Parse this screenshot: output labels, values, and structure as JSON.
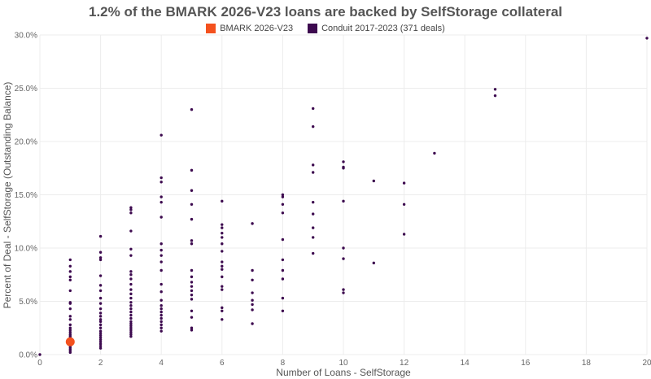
{
  "chart_data": {
    "type": "scatter",
    "title": "1.2% of the BMARK 2026-V23 loans are backed by SelfStorage collateral",
    "xlabel": "Number of Loans - SelfStorage",
    "ylabel": "Percent of Deal - SelfStorage (Outstanding Balance)",
    "xlim": [
      0,
      20
    ],
    "ylim": [
      0,
      30
    ],
    "x_ticks": [
      0,
      2,
      4,
      6,
      8,
      10,
      12,
      14,
      16,
      18,
      20
    ],
    "y_ticks": [
      0,
      5,
      10,
      15,
      20,
      25,
      30
    ],
    "x_tick_labels": [
      "0",
      "2",
      "4",
      "6",
      "8",
      "10",
      "12",
      "14",
      "16",
      "18",
      "20"
    ],
    "y_tick_labels": [
      "0.0%",
      "5.0%",
      "10.0%",
      "15.0%",
      "20.0%",
      "25.0%",
      "30.0%"
    ],
    "grid": true,
    "legend_position": "top-center",
    "series": [
      {
        "name": "BMARK 2026-V23",
        "color": "#f4511e",
        "points": [
          [
            1,
            1.2
          ]
        ]
      },
      {
        "name": "Conduit 2017-2023 (371 deals)",
        "color": "#3d0a4f",
        "points": [
          [
            0,
            0.0
          ],
          [
            1,
            0.2
          ],
          [
            1,
            0.35
          ],
          [
            1,
            0.5
          ],
          [
            1,
            0.65
          ],
          [
            1,
            0.8
          ],
          [
            1,
            0.95
          ],
          [
            1,
            1.1
          ],
          [
            1,
            1.3
          ],
          [
            1,
            1.45
          ],
          [
            1,
            1.6
          ],
          [
            1,
            1.75
          ],
          [
            1,
            1.9
          ],
          [
            1,
            2.1
          ],
          [
            1,
            2.3
          ],
          [
            1,
            2.5
          ],
          [
            1,
            2.8
          ],
          [
            1,
            3.3
          ],
          [
            1,
            3.6
          ],
          [
            1,
            4.3
          ],
          [
            1,
            4.8
          ],
          [
            1,
            4.9
          ],
          [
            1,
            6.0
          ],
          [
            1,
            7.0
          ],
          [
            1,
            7.3
          ],
          [
            1,
            7.8
          ],
          [
            1,
            8.3
          ],
          [
            1,
            8.9
          ],
          [
            2,
            0.6
          ],
          [
            2,
            0.8
          ],
          [
            2,
            1.0
          ],
          [
            2,
            1.2
          ],
          [
            2,
            1.4
          ],
          [
            2,
            1.6
          ],
          [
            2,
            1.8
          ],
          [
            2,
            2.0
          ],
          [
            2,
            2.2
          ],
          [
            2,
            2.5
          ],
          [
            2,
            2.8
          ],
          [
            2,
            3.1
          ],
          [
            2,
            3.3
          ],
          [
            2,
            3.6
          ],
          [
            2,
            3.9
          ],
          [
            2,
            4.3
          ],
          [
            2,
            4.8
          ],
          [
            2,
            5.3
          ],
          [
            2,
            6.0
          ],
          [
            2,
            6.5
          ],
          [
            2,
            7.4
          ],
          [
            2,
            8.9
          ],
          [
            2,
            9.1
          ],
          [
            2,
            9.6
          ],
          [
            2,
            11.1
          ],
          [
            3,
            1.7
          ],
          [
            3,
            1.9
          ],
          [
            3,
            2.1
          ],
          [
            3,
            2.3
          ],
          [
            3,
            2.5
          ],
          [
            3,
            2.7
          ],
          [
            3,
            2.9
          ],
          [
            3,
            3.1
          ],
          [
            3,
            3.4
          ],
          [
            3,
            3.7
          ],
          [
            3,
            4.0
          ],
          [
            3,
            4.3
          ],
          [
            3,
            4.6
          ],
          [
            3,
            4.9
          ],
          [
            3,
            5.3
          ],
          [
            3,
            5.7
          ],
          [
            3,
            6.1
          ],
          [
            3,
            6.6
          ],
          [
            3,
            7.1
          ],
          [
            3,
            7.5
          ],
          [
            3,
            7.8
          ],
          [
            3,
            9.3
          ],
          [
            3,
            9.9
          ],
          [
            3,
            11.6
          ],
          [
            3,
            13.3
          ],
          [
            3,
            13.6
          ],
          [
            3,
            13.8
          ],
          [
            4,
            2.2
          ],
          [
            4,
            2.5
          ],
          [
            4,
            2.8
          ],
          [
            4,
            3.1
          ],
          [
            4,
            3.4
          ],
          [
            4,
            3.7
          ],
          [
            4,
            4.0
          ],
          [
            4,
            4.3
          ],
          [
            4,
            4.6
          ],
          [
            4,
            5.1
          ],
          [
            4,
            5.9
          ],
          [
            4,
            6.6
          ],
          [
            4,
            7.9
          ],
          [
            4,
            8.7
          ],
          [
            4,
            9.3
          ],
          [
            4,
            9.8
          ],
          [
            4,
            10.4
          ],
          [
            4,
            12.9
          ],
          [
            4,
            14.3
          ],
          [
            4,
            14.8
          ],
          [
            4,
            16.2
          ],
          [
            4,
            16.6
          ],
          [
            4,
            20.6
          ],
          [
            5,
            2.3
          ],
          [
            5,
            2.5
          ],
          [
            5,
            3.5
          ],
          [
            5,
            4.1
          ],
          [
            5,
            5.2
          ],
          [
            5,
            5.6
          ],
          [
            5,
            6.0
          ],
          [
            5,
            6.4
          ],
          [
            5,
            6.8
          ],
          [
            5,
            7.3
          ],
          [
            5,
            7.9
          ],
          [
            5,
            10.4
          ],
          [
            5,
            10.7
          ],
          [
            5,
            12.7
          ],
          [
            5,
            14.1
          ],
          [
            5,
            15.4
          ],
          [
            5,
            17.3
          ],
          [
            5,
            23.0
          ],
          [
            6,
            3.3
          ],
          [
            6,
            4.1
          ],
          [
            6,
            4.4
          ],
          [
            6,
            6.1
          ],
          [
            6,
            6.4
          ],
          [
            6,
            7.3
          ],
          [
            6,
            8.0
          ],
          [
            6,
            8.3
          ],
          [
            6,
            8.7
          ],
          [
            6,
            9.7
          ],
          [
            6,
            10.4
          ],
          [
            6,
            11.0
          ],
          [
            6,
            11.4
          ],
          [
            6,
            11.9
          ],
          [
            6,
            12.2
          ],
          [
            6,
            14.4
          ],
          [
            7,
            2.9
          ],
          [
            7,
            4.2
          ],
          [
            7,
            4.7
          ],
          [
            7,
            5.1
          ],
          [
            7,
            5.8
          ],
          [
            7,
            7.0
          ],
          [
            7,
            7.9
          ],
          [
            7,
            12.3
          ],
          [
            8,
            4.1
          ],
          [
            8,
            5.3
          ],
          [
            8,
            7.1
          ],
          [
            8,
            7.9
          ],
          [
            8,
            8.9
          ],
          [
            8,
            10.8
          ],
          [
            8,
            13.3
          ],
          [
            8,
            14.1
          ],
          [
            8,
            14.8
          ],
          [
            8,
            15.0
          ],
          [
            9,
            9.5
          ],
          [
            9,
            11.0
          ],
          [
            9,
            11.9
          ],
          [
            9,
            13.2
          ],
          [
            9,
            14.3
          ],
          [
            9,
            17.1
          ],
          [
            9,
            17.8
          ],
          [
            9,
            21.4
          ],
          [
            9,
            23.1
          ],
          [
            10,
            5.8
          ],
          [
            10,
            6.1
          ],
          [
            10,
            9.0
          ],
          [
            10,
            10.0
          ],
          [
            10,
            14.4
          ],
          [
            10,
            17.5
          ],
          [
            10,
            17.6
          ],
          [
            10,
            18.1
          ],
          [
            11,
            8.6
          ],
          [
            11,
            16.3
          ],
          [
            12,
            11.3
          ],
          [
            12,
            14.1
          ],
          [
            12,
            16.1
          ],
          [
            13,
            18.9
          ],
          [
            15,
            24.3
          ],
          [
            15,
            24.9
          ],
          [
            20,
            29.7
          ]
        ]
      }
    ]
  }
}
